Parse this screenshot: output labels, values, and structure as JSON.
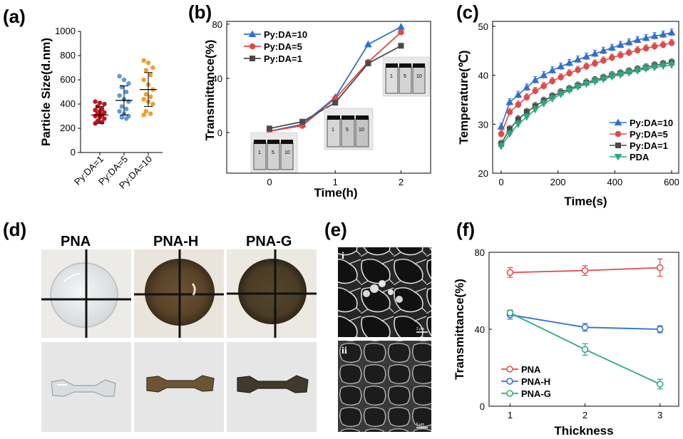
{
  "colors": {
    "blue": "#2f6fd0",
    "red": "#e04a4a",
    "gray": "#4a4a4a",
    "green": "#2ea87a",
    "darkred": "#c0141e",
    "lightblue": "#5b9bd5",
    "orange": "#ed9f2a"
  },
  "panels": {
    "a": {
      "label": "(a)"
    },
    "b": {
      "label": "(b)"
    },
    "c": {
      "label": "(c)"
    },
    "d": {
      "label": "(d)"
    },
    "e": {
      "label": "(e)"
    },
    "f": {
      "label": "(f)"
    }
  },
  "chart_data": [
    {
      "id": "a",
      "type": "scatter",
      "ylabel": "Particle Size(d.nm)",
      "ylim": [
        0,
        1000
      ],
      "yticks": [
        0,
        200,
        400,
        600,
        800,
        1000
      ],
      "categories": [
        "Py:DA=1",
        "Py:DA=5",
        "Py:DA=10"
      ],
      "series": [
        {
          "category": "Py:DA=1",
          "points": [
            420,
            410,
            400,
            380,
            360,
            350,
            340,
            330,
            320,
            310,
            300,
            290,
            280,
            260,
            250,
            240
          ],
          "mean": 310,
          "sd": 70
        },
        {
          "category": "Py:DA=5",
          "points": [
            630,
            600,
            570,
            540,
            500,
            470,
            440,
            420,
            380,
            360,
            340,
            320,
            300,
            290,
            280
          ],
          "mean": 430,
          "sd": 120
        },
        {
          "category": "Py:DA=10",
          "points": [
            760,
            740,
            700,
            680,
            640,
            600,
            560,
            520,
            480,
            460,
            440,
            420,
            400,
            340,
            320,
            310
          ],
          "mean": 520,
          "sd": 140
        }
      ]
    },
    {
      "id": "b",
      "type": "line",
      "xlabel": "Time(h)",
      "ylabel": "Transmittance(%)",
      "xlim": [
        -0.65,
        2.45
      ],
      "ylim": [
        -30,
        82
      ],
      "xticks": [
        0,
        1,
        2
      ],
      "yticks": [
        0,
        40,
        80
      ],
      "x": [
        0,
        0.5,
        1,
        1.5,
        2
      ],
      "series": [
        {
          "name": "Py:DA=10",
          "values": [
            1,
            6,
            26,
            65,
            78
          ]
        },
        {
          "name": "Py:DA=5",
          "values": [
            1,
            5,
            25,
            52,
            74
          ]
        },
        {
          "name": "Py:DA=1",
          "values": [
            3,
            8,
            22,
            51,
            64
          ]
        }
      ],
      "legend": "top-left",
      "inset_labels": [
        "1",
        "5",
        "10"
      ]
    },
    {
      "id": "c",
      "type": "line",
      "xlabel": "Time(s)",
      "ylabel": "Temperature(℃)",
      "xlim": [
        -30,
        625
      ],
      "ylim": [
        20,
        51
      ],
      "xticks": [
        0,
        200,
        400,
        600
      ],
      "yticks": [
        20,
        30,
        40,
        50
      ],
      "x": [
        0,
        30,
        60,
        90,
        120,
        150,
        180,
        210,
        240,
        270,
        300,
        330,
        360,
        390,
        420,
        450,
        480,
        510,
        540,
        570,
        600
      ],
      "series": [
        {
          "name": "Py:DA=10",
          "values": [
            29.5,
            34.5,
            36,
            37.5,
            39,
            40,
            41,
            41.8,
            42.5,
            43.2,
            43.8,
            44.4,
            45,
            45.6,
            46.2,
            46.7,
            47.2,
            47.6,
            48,
            48.3,
            48.7
          ]
        },
        {
          "name": "Py:DA=5",
          "values": [
            28,
            32.5,
            34,
            35.5,
            36.8,
            37.8,
            38.8,
            39.6,
            40.4,
            41.1,
            41.8,
            42.4,
            43,
            43.6,
            44.1,
            44.6,
            45.1,
            45.5,
            45.9,
            46.2,
            46.6
          ]
        },
        {
          "name": "Py:DA=1",
          "values": [
            26,
            29,
            31,
            32.5,
            33.7,
            34.8,
            35.7,
            36.5,
            37.2,
            37.9,
            38.5,
            39,
            39.5,
            40,
            40.4,
            40.8,
            41.2,
            41.6,
            42,
            42.3,
            42.6
          ]
        },
        {
          "name": "PDA",
          "values": [
            25.5,
            28,
            30,
            31.5,
            33,
            34.2,
            35.2,
            36.1,
            36.9,
            37.6,
            38.2,
            38.7,
            39.2,
            39.7,
            40.1,
            40.5,
            40.9,
            41.3,
            41.6,
            41.9,
            42.1
          ]
        }
      ],
      "legend": "bottom-right"
    },
    {
      "id": "f",
      "type": "line",
      "xlabel": "Thickness",
      "ylabel": "Transmittance(%)",
      "xlim": [
        0.72,
        3.25
      ],
      "ylim": [
        0,
        80
      ],
      "xticks": [
        1,
        2,
        3
      ],
      "yticks": [
        0,
        40,
        80
      ],
      "x": [
        1,
        2,
        3
      ],
      "series": [
        {
          "name": "PNA",
          "values": [
            69.5,
            70.5,
            72
          ],
          "err": [
            2.5,
            2.5,
            4.5
          ]
        },
        {
          "name": "PNA-H",
          "values": [
            47.5,
            41,
            40
          ],
          "err": [
            2.2,
            2,
            1.8
          ]
        },
        {
          "name": "PNA-G",
          "values": [
            48.5,
            29.5,
            11.5
          ],
          "err": [
            1.5,
            3,
            2.5
          ]
        }
      ],
      "legend": "bottom-left"
    }
  ],
  "photos": {
    "d": {
      "titles": [
        "PNA",
        "PNA-H",
        "PNA-G"
      ]
    },
    "e": {
      "labels": [
        "i",
        "ii"
      ],
      "scale_labels": [
        "2 μm",
        "5 μm"
      ]
    }
  }
}
